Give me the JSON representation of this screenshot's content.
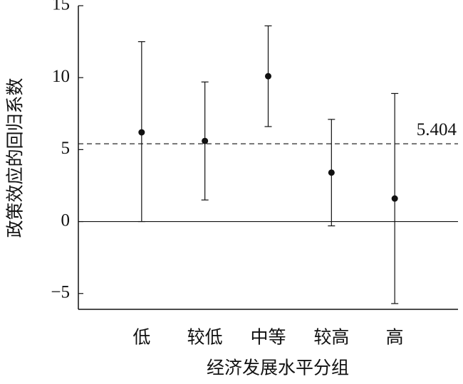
{
  "chart_data": {
    "type": "errorbar",
    "x_label": "经济发展水平分组",
    "y_label": "政策效应的回归系数",
    "categories": [
      "低",
      "较低",
      "中等",
      "较高",
      "高"
    ],
    "series": [
      {
        "color": "#111111",
        "values": [
          6.2,
          5.6,
          10.1,
          3.4,
          1.6
        ],
        "lower": [
          0,
          1.5,
          6.6,
          -0.3,
          -5.7
        ],
        "upper": [
          12.5,
          9.7,
          13.6,
          7.1,
          8.9
        ]
      }
    ],
    "ylim": [
      -6.1,
      15
    ],
    "yticks": [
      {
        "value": -5,
        "label": "−5"
      },
      0,
      5,
      10,
      15
    ],
    "reference_line": 5.404,
    "zero_line": true
  }
}
